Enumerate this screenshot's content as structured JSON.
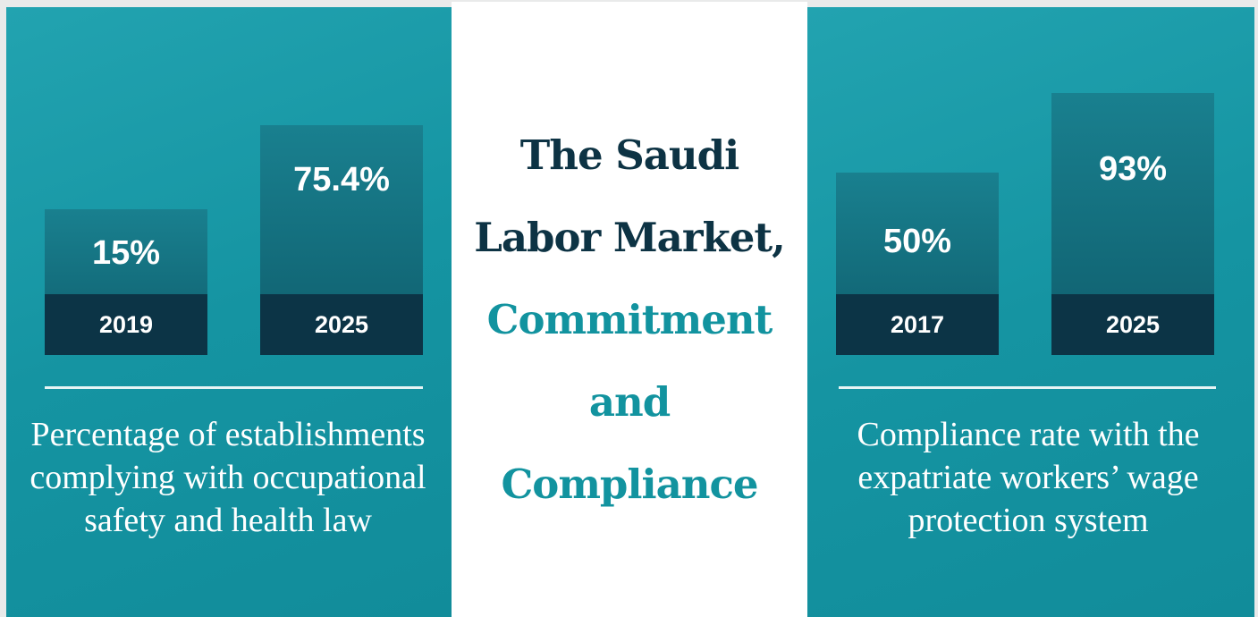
{
  "title_lines": [
    "The Saudi",
    "Labor Market,"
  ],
  "title_highlight_lines": [
    "Commitment",
    "and",
    "Compliance"
  ],
  "left_panel": {
    "stats": [
      {
        "value": "15%",
        "year": "2019"
      },
      {
        "value": "75.4%",
        "year": "2025"
      }
    ],
    "caption": "Percentage of establishments complying with occupational safety and health law"
  },
  "right_panel": {
    "stats": [
      {
        "value": "50%",
        "year": "2017"
      },
      {
        "value": "93%",
        "year": "2025"
      }
    ],
    "caption": "Compliance rate with the expatriate workers’ wage protection system"
  }
}
